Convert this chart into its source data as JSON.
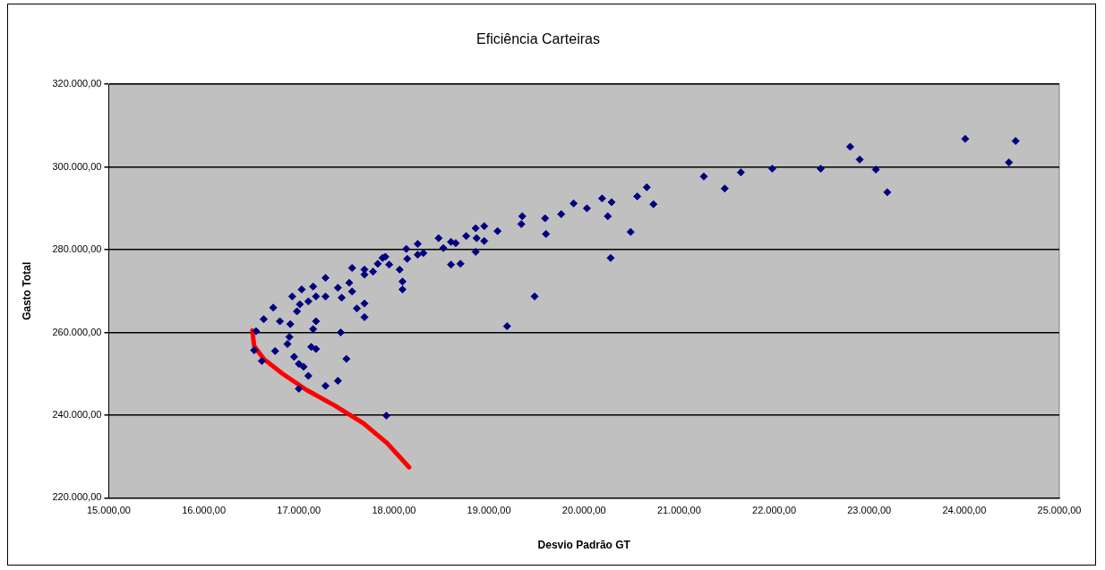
{
  "chart_data": {
    "type": "scatter",
    "title": "Eficiência Carteiras",
    "xlabel": "Desvio Padrão GT",
    "ylabel": "Gasto Total",
    "xlim": [
      15000,
      25000
    ],
    "ylim": [
      220000,
      320000
    ],
    "xticks": [
      {
        "value": 15000,
        "label": "15.000,00"
      },
      {
        "value": 16000,
        "label": "16.000,00"
      },
      {
        "value": 17000,
        "label": "17.000,00"
      },
      {
        "value": 18000,
        "label": "18.000,00"
      },
      {
        "value": 19000,
        "label": "19.000,00"
      },
      {
        "value": 20000,
        "label": "20.000,00"
      },
      {
        "value": 21000,
        "label": "21.000,00"
      },
      {
        "value": 22000,
        "label": "22.000,00"
      },
      {
        "value": 23000,
        "label": "23.000,00"
      },
      {
        "value": 24000,
        "label": "24.000,00"
      },
      {
        "value": 25000,
        "label": "25.000,00"
      }
    ],
    "yticks": [
      {
        "value": 220000,
        "label": "220.000,00"
      },
      {
        "value": 240000,
        "label": "240.000,00"
      },
      {
        "value": 260000,
        "label": "260.000,00"
      },
      {
        "value": 280000,
        "label": "280.000,00"
      },
      {
        "value": 300000,
        "label": "300.000,00"
      },
      {
        "value": 320000,
        "label": "320.000,00"
      }
    ],
    "grid": "y",
    "legend": false,
    "marker": "diamond",
    "series": [
      {
        "color": "#000080",
        "x": [
          21260,
          21480,
          21650,
          21980,
          22490,
          22800,
          22900,
          23070,
          23190,
          24010,
          24470,
          24540,
          18600,
          18650,
          18760,
          18860,
          18950,
          18870,
          18950,
          18860,
          19090,
          19350,
          19340,
          19590,
          19600,
          19760,
          19890,
          20030,
          20190,
          20290,
          20250,
          20280,
          19480,
          20490,
          20560,
          20660,
          20730,
          18600,
          18700,
          17410,
          17450,
          17530,
          17560,
          17560,
          17610,
          17690,
          17690,
          17690,
          17690,
          17780,
          17830,
          17880,
          17910,
          17950,
          18060,
          18090,
          18090,
          18130,
          18140,
          18250,
          18250,
          18310,
          18470,
          18520,
          17440,
          17500,
          17410,
          19190,
          16550,
          16530,
          16610,
          16630,
          16730,
          16750,
          16800,
          16900,
          16880,
          16910,
          16930,
          16980,
          17030,
          17010,
          16950,
          17000,
          17050,
          17100,
          17150,
          17100,
          17180,
          17180,
          17130,
          17180,
          17150,
          17280,
          17280,
          17280,
          17000,
          17920
        ],
        "values": [
          297700,
          294800,
          298700,
          299600,
          299600,
          304900,
          301800,
          299400,
          293900,
          306800,
          301100,
          306300,
          281900,
          281600,
          283300,
          285200,
          285700,
          282800,
          282100,
          279500,
          284500,
          288100,
          286200,
          287600,
          283800,
          288600,
          291200,
          290000,
          292400,
          291500,
          288100,
          278000,
          268700,
          284300,
          292900,
          295100,
          291000,
          276400,
          276600,
          270800,
          268400,
          272000,
          269900,
          275600,
          265800,
          267000,
          263700,
          274000,
          275200,
          274700,
          276600,
          278000,
          278300,
          276400,
          275200,
          272300,
          270400,
          280200,
          277800,
          281400,
          278800,
          279200,
          282800,
          280400,
          260000,
          253600,
          248300,
          261500,
          260300,
          255700,
          253100,
          263200,
          266000,
          255500,
          262700,
          258900,
          257200,
          262000,
          268700,
          265100,
          270400,
          266800,
          254100,
          252400,
          251700,
          249500,
          271100,
          267500,
          268700,
          262700,
          256500,
          256000,
          260800,
          273200,
          268700,
          247100,
          246400,
          239900
        ]
      },
      {
        "type": "line",
        "color": "#ff0000",
        "marker": "none",
        "x": [
          16510,
          16530,
          16630,
          16830,
          17080,
          17380,
          17680,
          17930,
          18160
        ],
        "values": [
          260500,
          256700,
          253600,
          250000,
          246100,
          242300,
          238000,
          233200,
          227400
        ]
      }
    ]
  }
}
